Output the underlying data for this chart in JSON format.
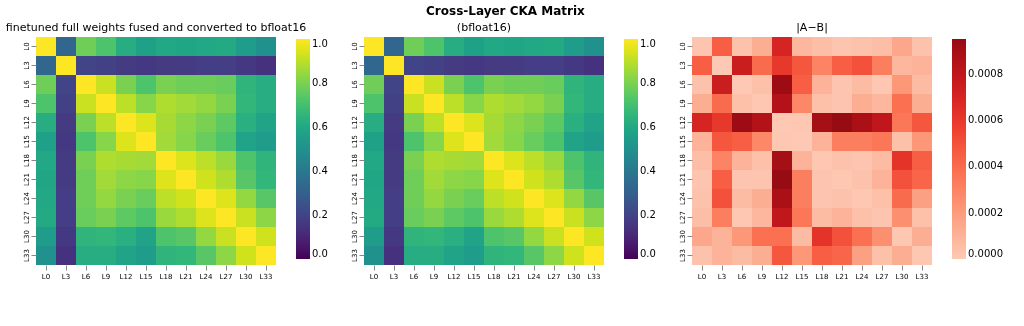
{
  "chart_data": [
    {
      "type": "heatmap",
      "annotations": [
        "Cross-Layer CKA Matrix"
      ],
      "title": "finetuned full weights fused and converted to bfloat16",
      "categories": [
        "L0",
        "L3",
        "L6",
        "L9",
        "L12",
        "L15",
        "L18",
        "L21",
        "L24",
        "L27",
        "L30",
        "L33"
      ],
      "y_categories": [
        "L0",
        "L3",
        "L6",
        "L9",
        "L12",
        "L15",
        "L18",
        "L21",
        "L24",
        "L27",
        "L30",
        "L33"
      ],
      "cells": [
        [
          1,
          0.33,
          0.78,
          0.72,
          0.62,
          0.57,
          0.6,
          0.59,
          0.6,
          0.61,
          0.55,
          0.5
        ],
        [
          0.33,
          1,
          0.2,
          0.19,
          0.17,
          0.16,
          0.17,
          0.17,
          0.18,
          0.18,
          0.16,
          0.14
        ],
        [
          0.78,
          0.2,
          1,
          0.92,
          0.8,
          0.72,
          0.8,
          0.78,
          0.78,
          0.77,
          0.65,
          0.62
        ],
        [
          0.72,
          0.19,
          0.92,
          1,
          0.9,
          0.82,
          0.88,
          0.86,
          0.84,
          0.8,
          0.66,
          0.62
        ],
        [
          0.62,
          0.17,
          0.8,
          0.9,
          1,
          0.95,
          0.87,
          0.83,
          0.8,
          0.75,
          0.63,
          0.58
        ],
        [
          0.57,
          0.16,
          0.72,
          0.82,
          0.95,
          1,
          0.86,
          0.82,
          0.77,
          0.72,
          0.58,
          0.55
        ],
        [
          0.6,
          0.17,
          0.8,
          0.88,
          0.87,
          0.86,
          1,
          0.95,
          0.9,
          0.85,
          0.72,
          0.65
        ],
        [
          0.59,
          0.17,
          0.78,
          0.86,
          0.83,
          0.82,
          0.95,
          1,
          0.93,
          0.88,
          0.74,
          0.66
        ],
        [
          0.6,
          0.18,
          0.78,
          0.84,
          0.8,
          0.77,
          0.9,
          0.93,
          1,
          0.95,
          0.84,
          0.74
        ],
        [
          0.61,
          0.18,
          0.77,
          0.8,
          0.75,
          0.72,
          0.85,
          0.88,
          0.95,
          1,
          0.92,
          0.83
        ],
        [
          0.55,
          0.16,
          0.65,
          0.66,
          0.63,
          0.58,
          0.72,
          0.74,
          0.84,
          0.92,
          1,
          0.93
        ],
        [
          0.5,
          0.14,
          0.62,
          0.62,
          0.58,
          0.55,
          0.65,
          0.66,
          0.74,
          0.83,
          0.93,
          1
        ]
      ],
      "clim": [
        0,
        1
      ],
      "cticks": [
        {
          "value": 0,
          "label": "0.0"
        },
        {
          "value": 0.2,
          "label": "0.2"
        },
        {
          "value": 0.4,
          "label": "0.4"
        },
        {
          "value": 0.6,
          "label": "0.6"
        },
        {
          "value": 0.8,
          "label": "0.8"
        },
        {
          "value": 1,
          "label": "1.0"
        }
      ]
    },
    {
      "type": "heatmap",
      "title": "(bfloat16)",
      "categories": [
        "L0",
        "L3",
        "L6",
        "L9",
        "L12",
        "L15",
        "L18",
        "L21",
        "L24",
        "L27",
        "L30",
        "L33"
      ],
      "y_categories": [
        "L0",
        "L3",
        "L6",
        "L9",
        "L12",
        "L15",
        "L18",
        "L21",
        "L24",
        "L27",
        "L30",
        "L33"
      ],
      "cells": [
        [
          1,
          0.33,
          0.78,
          0.72,
          0.62,
          0.57,
          0.6,
          0.59,
          0.6,
          0.61,
          0.55,
          0.5
        ],
        [
          0.33,
          1,
          0.2,
          0.19,
          0.17,
          0.16,
          0.17,
          0.17,
          0.18,
          0.18,
          0.16,
          0.14
        ],
        [
          0.78,
          0.2,
          1,
          0.92,
          0.8,
          0.72,
          0.8,
          0.78,
          0.78,
          0.77,
          0.65,
          0.62
        ],
        [
          0.72,
          0.19,
          0.92,
          1,
          0.9,
          0.82,
          0.88,
          0.86,
          0.84,
          0.8,
          0.66,
          0.62
        ],
        [
          0.62,
          0.17,
          0.8,
          0.9,
          1,
          0.95,
          0.87,
          0.83,
          0.8,
          0.75,
          0.63,
          0.58
        ],
        [
          0.57,
          0.16,
          0.72,
          0.82,
          0.95,
          1,
          0.86,
          0.82,
          0.77,
          0.72,
          0.58,
          0.55
        ],
        [
          0.6,
          0.17,
          0.8,
          0.88,
          0.87,
          0.86,
          1,
          0.95,
          0.9,
          0.85,
          0.72,
          0.65
        ],
        [
          0.59,
          0.17,
          0.78,
          0.86,
          0.83,
          0.82,
          0.95,
          1,
          0.93,
          0.88,
          0.74,
          0.66
        ],
        [
          0.6,
          0.18,
          0.78,
          0.84,
          0.8,
          0.77,
          0.9,
          0.93,
          1,
          0.95,
          0.84,
          0.74
        ],
        [
          0.61,
          0.18,
          0.77,
          0.8,
          0.75,
          0.72,
          0.85,
          0.88,
          0.95,
          1,
          0.92,
          0.83
        ],
        [
          0.55,
          0.16,
          0.65,
          0.66,
          0.63,
          0.58,
          0.72,
          0.74,
          0.84,
          0.92,
          1,
          0.93
        ],
        [
          0.5,
          0.14,
          0.62,
          0.62,
          0.58,
          0.55,
          0.65,
          0.66,
          0.74,
          0.83,
          0.93,
          1
        ]
      ],
      "clim": [
        0,
        1
      ],
      "cticks": [
        {
          "value": 0,
          "label": "0.0"
        },
        {
          "value": 0.2,
          "label": "0.2"
        },
        {
          "value": 0.4,
          "label": "0.4"
        },
        {
          "value": 0.6,
          "label": "0.6"
        },
        {
          "value": 0.8,
          "label": "0.8"
        },
        {
          "value": 1,
          "label": "1.0"
        }
      ]
    },
    {
      "type": "heatmap",
      "title": "|A−B|",
      "categories": [
        "L0",
        "L3",
        "L6",
        "L9",
        "L12",
        "L15",
        "L18",
        "L21",
        "L24",
        "L27",
        "L30",
        "L33"
      ],
      "y_categories": [
        "L0",
        "L3",
        "L6",
        "L9",
        "L12",
        "L15",
        "L18",
        "L21",
        "L24",
        "L27",
        "L30",
        "L33"
      ],
      "cells": [
        [
          2e-05,
          0.00045,
          3e-05,
          0.00012,
          0.0007,
          8e-05,
          5e-05,
          2e-05,
          3e-05,
          5e-05,
          0.00015,
          3e-05
        ],
        [
          0.00045,
          0,
          0.00075,
          0.0004,
          0.0006,
          0.00048,
          0.0003,
          0.00045,
          0.0005,
          0.00032,
          8e-05,
          0.0001
        ],
        [
          3e-05,
          0.00075,
          0,
          4e-05,
          0.00093,
          0.00045,
          0.0001,
          2e-05,
          6e-05,
          1e-05,
          0.00022,
          6e-05
        ],
        [
          0.00012,
          0.0004,
          4e-05,
          1e-05,
          0.00085,
          0.00028,
          4e-05,
          2e-05,
          0.00012,
          8e-05,
          0.00038,
          0.00012
        ],
        [
          0.0007,
          0.0006,
          0.00093,
          0.00085,
          0,
          1e-05,
          0.0009,
          0.00095,
          0.00088,
          0.0008,
          0.00035,
          0.00048
        ],
        [
          0.0001,
          0.00048,
          0.00045,
          0.00028,
          1e-05,
          0,
          0.0001,
          0.00032,
          0.00032,
          0.00035,
          4e-05,
          0.00022
        ],
        [
          5e-05,
          0.0003,
          0.0001,
          4e-05,
          0.0009,
          0.0001,
          1e-05,
          3e-05,
          2e-05,
          6e-05,
          0.00062,
          0.00045
        ],
        [
          2e-05,
          0.00045,
          2e-05,
          2e-05,
          0.00095,
          0.00032,
          2e-05,
          1e-05,
          3e-05,
          0.0001,
          0.0005,
          0.00042
        ],
        [
          3e-05,
          0.0005,
          6e-05,
          0.00012,
          0.00088,
          0.00032,
          2e-05,
          3e-05,
          1e-05,
          4e-05,
          0.0004,
          0.00018
        ],
        [
          5e-05,
          0.00032,
          1e-05,
          8e-05,
          0.0008,
          0.00035,
          6e-05,
          0.0001,
          4e-05,
          2e-05,
          0.00025,
          4e-05
        ],
        [
          0.00015,
          0.0001,
          0.00022,
          0.00038,
          0.00038,
          6e-05,
          0.00062,
          0.0005,
          0.00038,
          0.00025,
          1e-05,
          0.00012
        ],
        [
          3e-05,
          0.0001,
          6e-05,
          0.00012,
          0.00048,
          0.00022,
          0.00045,
          0.00042,
          0.00018,
          4e-05,
          0.00012,
          1e-05
        ]
      ],
      "clim": [
        0,
        0.00095
      ],
      "cticks": [
        {
          "value": 0,
          "label": "0.0000"
        },
        {
          "value": 0.0002,
          "label": "0.0002"
        },
        {
          "value": 0.0004,
          "label": "0.0004"
        },
        {
          "value": 0.0006,
          "label": "0.0006"
        },
        {
          "value": 0.0008,
          "label": "0.0008"
        }
      ]
    }
  ]
}
